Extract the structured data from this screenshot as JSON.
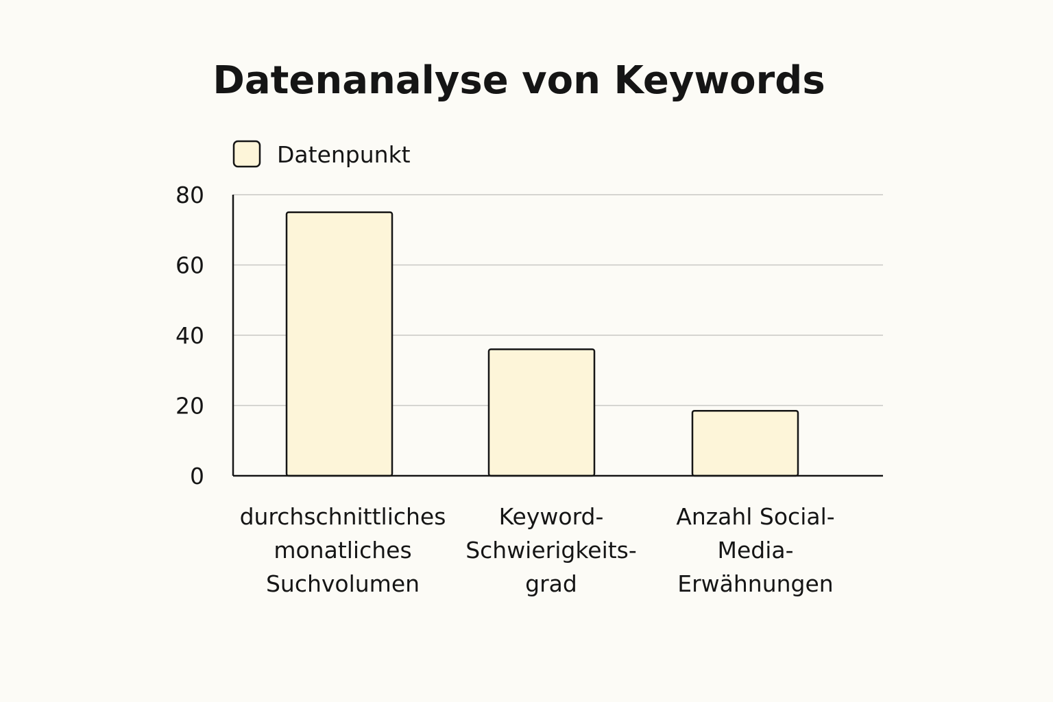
{
  "chart_data": {
    "type": "bar",
    "title": "Datenanalyse von Keywords",
    "xlabel": "",
    "ylabel": "",
    "ylim": [
      0,
      80
    ],
    "yticks": [
      0,
      20,
      40,
      60,
      80
    ],
    "grid": true,
    "legend_position": "top-left",
    "categories": [
      [
        "durchschnittliches",
        "monatliches",
        "Suchvolumen"
      ],
      [
        "Keyword-",
        "Schwierigkeits-",
        "grad"
      ],
      [
        "Anzahl Social-",
        "Media-",
        "Erwähnungen"
      ]
    ],
    "series": [
      {
        "name": "Datenpunkt",
        "values": [
          75,
          36,
          18.5
        ]
      }
    ],
    "colors": {
      "bar_fill": "#fdf5d9",
      "bar_stroke": "#151515",
      "grid": "#c8c8c4",
      "axis": "#151515"
    }
  }
}
